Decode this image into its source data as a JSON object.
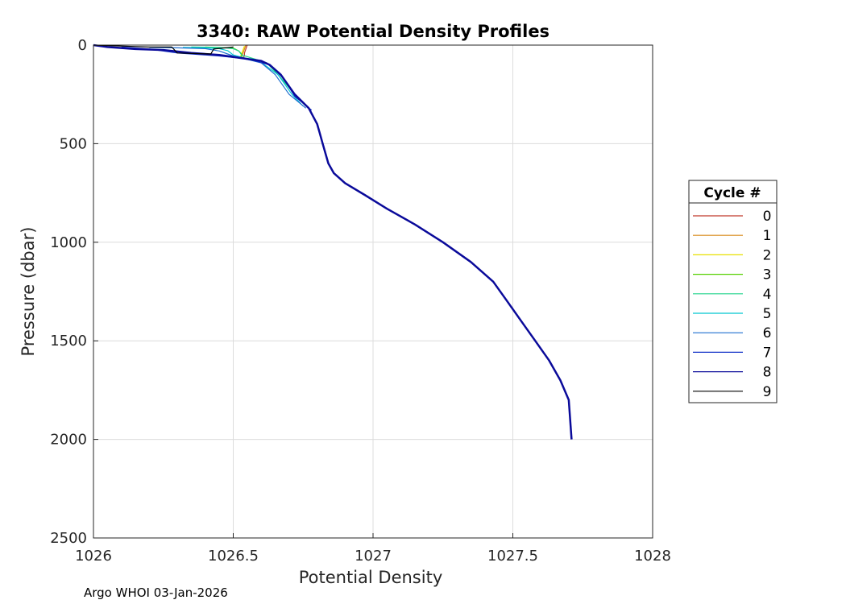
{
  "chart_data": {
    "type": "line",
    "title": "3340: RAW Potential Density Profiles",
    "xlabel": "Potential Density",
    "ylabel": "Pressure (dbar)",
    "xlim": [
      1026,
      1028
    ],
    "ylim": [
      0,
      2500
    ],
    "y_reversed": true,
    "grid": true,
    "x_ticks": [
      "1026",
      "1026.5",
      "1027",
      "1027.5",
      "1028"
    ],
    "y_ticks": [
      "0",
      "500",
      "1000",
      "1500",
      "2000",
      "2500"
    ],
    "legend": {
      "title": "Cycle #",
      "position": "right-outside"
    },
    "series": [
      {
        "name": "0",
        "color": "#c0392b",
        "x": [
          1026.55,
          1026.545,
          1026.54,
          1026.54,
          1026.535
        ],
        "y": [
          0,
          20,
          40,
          55,
          65
        ]
      },
      {
        "name": "1",
        "color": "#d98a1a",
        "x": [
          1026.545,
          1026.54,
          1026.535,
          1026.53
        ],
        "y": [
          0,
          20,
          40,
          60
        ]
      },
      {
        "name": "2",
        "color": "#e8e000",
        "x": [
          1026.54,
          1026.535,
          1026.53,
          1026.525
        ],
        "y": [
          5,
          25,
          45,
          60
        ]
      },
      {
        "name": "3",
        "color": "#55d000",
        "x": [
          1026.4,
          1026.5,
          1026.52,
          1026.53,
          1026.53
        ],
        "y": [
          10,
          15,
          30,
          45,
          60
        ]
      },
      {
        "name": "4",
        "color": "#1fd38a",
        "x": [
          1026.35,
          1026.45,
          1026.5,
          1026.52,
          1026.53,
          1026.62,
          1026.66,
          1026.72,
          1026.76
        ],
        "y": [
          10,
          12,
          18,
          30,
          50,
          90,
          150,
          250,
          310
        ]
      },
      {
        "name": "5",
        "color": "#00c8d0",
        "x": [
          1026.32,
          1026.4,
          1026.45,
          1026.48,
          1026.5,
          1026.6,
          1026.66,
          1026.71,
          1026.75
        ],
        "y": [
          12,
          14,
          18,
          28,
          50,
          88,
          150,
          250,
          310
        ]
      },
      {
        "name": "6",
        "color": "#1f6fd0",
        "x": [
          1026.2,
          1026.3,
          1026.4,
          1026.45,
          1026.5,
          1026.6,
          1026.65,
          1026.7,
          1026.76
        ],
        "y": [
          12,
          14,
          18,
          30,
          55,
          90,
          150,
          250,
          320
        ]
      },
      {
        "name": "7",
        "color": "#1030c8",
        "x": [
          1026.1,
          1026.2,
          1026.3,
          1026.45,
          1026.55,
          1026.63,
          1026.68,
          1026.72,
          1026.78
        ],
        "y": [
          10,
          20,
          40,
          55,
          70,
          100,
          170,
          260,
          330
        ]
      },
      {
        "name": "8",
        "color": "#0a0a9a",
        "x": [
          1026.0,
          1026.05,
          1026.15,
          1026.25,
          1026.35,
          1026.45,
          1026.55,
          1026.6,
          1026.63,
          1026.67,
          1026.72,
          1026.77,
          1026.8,
          1026.81,
          1026.82,
          1026.84,
          1026.86,
          1026.9,
          1026.97,
          1027.05,
          1027.15,
          1027.25,
          1027.35,
          1027.43,
          1027.48,
          1027.53,
          1027.58,
          1027.63,
          1027.67,
          1027.7,
          1027.71
        ],
        "y": [
          0,
          10,
          20,
          25,
          40,
          50,
          70,
          80,
          100,
          150,
          250,
          320,
          400,
          450,
          500,
          600,
          650,
          700,
          760,
          830,
          910,
          1000,
          1100,
          1200,
          1300,
          1400,
          1500,
          1600,
          1700,
          1800,
          2000
        ]
      },
      {
        "name": "9",
        "color": "#000000",
        "x": [
          1026.0,
          1026.1,
          1026.2,
          1026.28,
          1026.3,
          1026.42,
          1026.43,
          1026.5
        ],
        "y": [
          0,
          5,
          10,
          10,
          40,
          45,
          20,
          10
        ]
      }
    ]
  },
  "footer": "Argo WHOI 03-Jan-2026"
}
